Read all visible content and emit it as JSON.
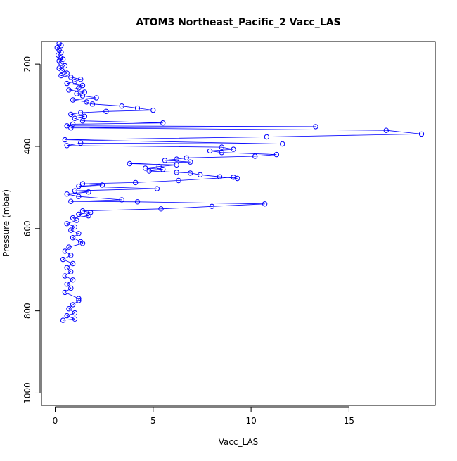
{
  "chart_data": {
    "type": "scatter",
    "title": "ATOM3 Northeast_Pacific_2 Vacc_LAS",
    "xlabel": "Vacc_LAS",
    "ylabel": "Pressure (mbar)",
    "xlim": [
      -0.7,
      19.4
    ],
    "ylim": [
      1030,
      145
    ],
    "y_reversed": true,
    "x_ticks": [
      "0",
      "5",
      "10",
      "15"
    ],
    "x_tick_values": [
      0,
      5,
      10,
      15
    ],
    "y_ticks": [
      "200",
      "400",
      "600",
      "800",
      "1000"
    ],
    "y_tick_values": [
      200,
      400,
      600,
      800,
      1000
    ],
    "grid": false,
    "legend": "none",
    "series_color": "#0000ff",
    "marker": "open-circle",
    "connect_points": true,
    "series": [
      {
        "points": [
          [
            0.2,
            150
          ],
          [
            0.3,
            155
          ],
          [
            0.1,
            160
          ],
          [
            0.2,
            166
          ],
          [
            0.3,
            172
          ],
          [
            0.15,
            178
          ],
          [
            0.25,
            184
          ],
          [
            0.4,
            188
          ],
          [
            0.2,
            192
          ],
          [
            0.3,
            198
          ],
          [
            0.5,
            204
          ],
          [
            0.2,
            210
          ],
          [
            0.35,
            216
          ],
          [
            0.6,
            222
          ],
          [
            0.3,
            228
          ],
          [
            0.8,
            232
          ],
          [
            1.3,
            237
          ],
          [
            1.0,
            242
          ],
          [
            0.6,
            247
          ],
          [
            1.4,
            252
          ],
          [
            1.2,
            258
          ],
          [
            0.7,
            263
          ],
          [
            1.5,
            268
          ],
          [
            1.1,
            272
          ],
          [
            1.4,
            277
          ],
          [
            2.1,
            282
          ],
          [
            0.9,
            287
          ],
          [
            1.6,
            292
          ],
          [
            1.9,
            297
          ],
          [
            3.4,
            302
          ],
          [
            4.2,
            307
          ],
          [
            5.0,
            312
          ],
          [
            2.6,
            315
          ],
          [
            1.3,
            318
          ],
          [
            0.8,
            322
          ],
          [
            1.5,
            327
          ],
          [
            1.0,
            332
          ],
          [
            1.4,
            338
          ],
          [
            5.5,
            343
          ],
          [
            0.9,
            346
          ],
          [
            0.6,
            350
          ],
          [
            13.3,
            352
          ],
          [
            0.8,
            355
          ],
          [
            16.9,
            361
          ],
          [
            18.7,
            370
          ],
          [
            10.8,
            377
          ],
          [
            0.5,
            384
          ],
          [
            11.6,
            394
          ],
          [
            1.3,
            392
          ],
          [
            0.6,
            398
          ],
          [
            8.5,
            402
          ],
          [
            9.1,
            407
          ],
          [
            7.9,
            411
          ],
          [
            8.5,
            415
          ],
          [
            11.3,
            420
          ],
          [
            10.2,
            424
          ],
          [
            6.7,
            428
          ],
          [
            6.2,
            431
          ],
          [
            5.6,
            434
          ],
          [
            6.9,
            438
          ],
          [
            3.8,
            442
          ],
          [
            6.2,
            445
          ],
          [
            5.3,
            449
          ],
          [
            4.6,
            453
          ],
          [
            5.5,
            456
          ],
          [
            4.8,
            460
          ],
          [
            6.2,
            463
          ],
          [
            6.9,
            465
          ],
          [
            7.4,
            469
          ],
          [
            8.4,
            474
          ],
          [
            9.3,
            478
          ],
          [
            9.1,
            475
          ],
          [
            6.3,
            483
          ],
          [
            4.1,
            488
          ],
          [
            1.4,
            491
          ],
          [
            2.4,
            494
          ],
          [
            1.2,
            497
          ],
          [
            5.2,
            503
          ],
          [
            1.0,
            508
          ],
          [
            1.7,
            511
          ],
          [
            0.6,
            516
          ],
          [
            1.2,
            522
          ],
          [
            3.4,
            530
          ],
          [
            0.8,
            534
          ],
          [
            4.2,
            535
          ],
          [
            10.7,
            540
          ],
          [
            8.0,
            546
          ],
          [
            5.4,
            552
          ],
          [
            1.4,
            557
          ],
          [
            1.8,
            561
          ],
          [
            1.2,
            565
          ],
          [
            1.7,
            569
          ],
          [
            0.9,
            574
          ],
          [
            1.1,
            580
          ],
          [
            0.6,
            588
          ],
          [
            1.0,
            596
          ],
          [
            0.8,
            604
          ],
          [
            1.2,
            612
          ],
          [
            0.9,
            622
          ],
          [
            1.3,
            632
          ],
          [
            1.4,
            636
          ],
          [
            0.7,
            645
          ],
          [
            0.5,
            655
          ],
          [
            0.8,
            665
          ],
          [
            0.4,
            675
          ],
          [
            0.9,
            685
          ],
          [
            0.6,
            695
          ],
          [
            0.8,
            705
          ],
          [
            0.5,
            715
          ],
          [
            0.9,
            725
          ],
          [
            0.6,
            735
          ],
          [
            0.8,
            745
          ],
          [
            0.5,
            755
          ],
          [
            1.2,
            770
          ],
          [
            1.2,
            775
          ],
          [
            0.9,
            785
          ],
          [
            0.7,
            795
          ],
          [
            1.0,
            805
          ],
          [
            0.6,
            812
          ],
          [
            1.0,
            820
          ],
          [
            0.4,
            823
          ]
        ]
      }
    ]
  }
}
